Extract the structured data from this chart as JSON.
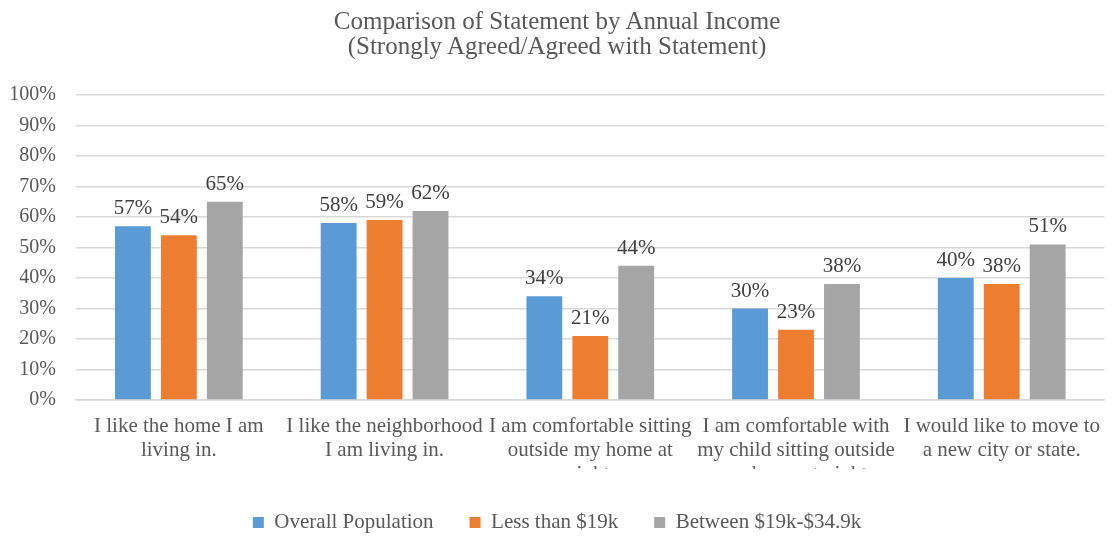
{
  "chart_data": {
    "type": "bar",
    "title": "Comparison of Statement by Annual Income",
    "subtitle": "(Strongly Agreed/Agreed with Statement)",
    "categories": [
      "I like the home I am living in.",
      "I like the neighborhood I am living in.",
      "I am comfortable sitting outside my home at night.",
      "I am comfortable with my child sitting outside my home at night.",
      "I would like to move to a new city or state."
    ],
    "series": [
      {
        "name": "Overall Population",
        "color": "#5b9bd5",
        "values": [
          57,
          58,
          34,
          30,
          40
        ],
        "value_labels": [
          "57%",
          "58%",
          "34%",
          "30%",
          "40%"
        ]
      },
      {
        "name": "Less than $19k",
        "color": "#ed7d31",
        "values": [
          54,
          59,
          21,
          23,
          38
        ],
        "value_labels": [
          "54%",
          "59%",
          "21%",
          "23%",
          "38%"
        ]
      },
      {
        "name": "Between $19k-$34.9k",
        "color": "#a5a5a5",
        "values": [
          65,
          62,
          44,
          38,
          51
        ],
        "value_labels": [
          "65%",
          "62%",
          "44%",
          "38%",
          "51%"
        ]
      }
    ],
    "ylim": [
      0,
      100
    ],
    "yticks": [
      {
        "value": 0,
        "label": "0%"
      },
      {
        "value": 10,
        "label": "10%"
      },
      {
        "value": 20,
        "label": "20%"
      },
      {
        "value": 30,
        "label": "30%"
      },
      {
        "value": 40,
        "label": "40%"
      },
      {
        "value": 50,
        "label": "50%"
      },
      {
        "value": 60,
        "label": "60%"
      },
      {
        "value": 70,
        "label": "70%"
      },
      {
        "value": 80,
        "label": "80%"
      },
      {
        "value": 90,
        "label": "90%"
      },
      {
        "value": 100,
        "label": "100%"
      }
    ],
    "grid": "y",
    "legend": "bottom"
  }
}
